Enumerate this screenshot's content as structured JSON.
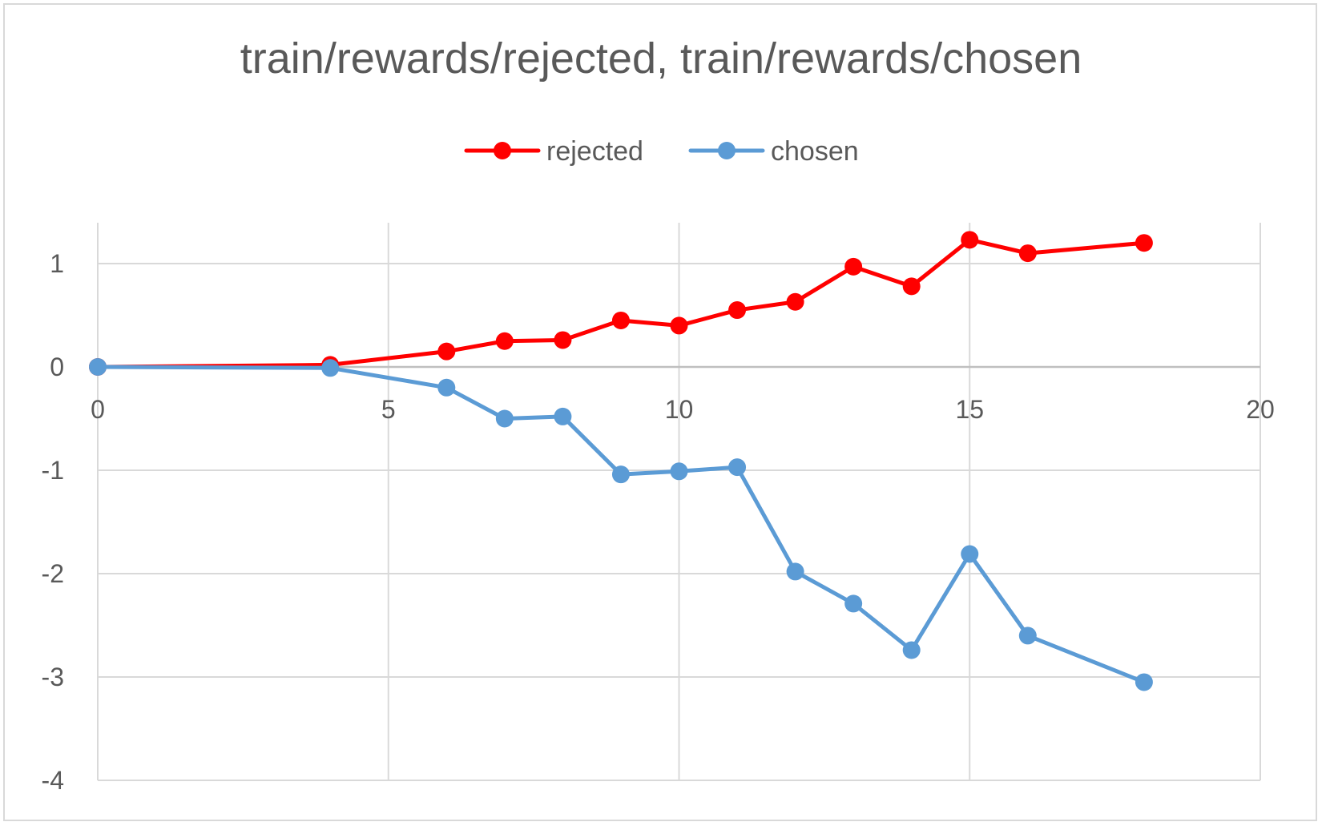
{
  "chart_data": {
    "type": "line",
    "title": "train/rewards/rejected, train/rewards/chosen",
    "xlabel": "",
    "ylabel": "",
    "xlim": [
      0,
      20
    ],
    "ylim": [
      -4,
      1.4
    ],
    "x_ticks": [
      0,
      5,
      10,
      15,
      20
    ],
    "y_ticks": [
      1,
      0,
      -1,
      -2,
      -3,
      -4
    ],
    "grid": true,
    "legend_position": "top-center",
    "series": [
      {
        "name": "rejected",
        "color": "#ff0000",
        "x": [
          0,
          4,
          6,
          7,
          8,
          9,
          10,
          11,
          12,
          13,
          14,
          15,
          16,
          18
        ],
        "y": [
          0,
          0.02,
          0.15,
          0.25,
          0.26,
          0.45,
          0.4,
          0.55,
          0.63,
          0.97,
          0.78,
          1.23,
          1.1,
          1.2
        ]
      },
      {
        "name": "chosen",
        "color": "#5b9bd5",
        "x": [
          0,
          4,
          6,
          7,
          8,
          9,
          10,
          11,
          12,
          13,
          14,
          15,
          16,
          18
        ],
        "y": [
          0,
          -0.01,
          -0.2,
          -0.5,
          -0.48,
          -1.04,
          -1.01,
          -0.97,
          -1.98,
          -2.29,
          -2.74,
          -1.81,
          -2.6,
          -3.05
        ]
      }
    ]
  }
}
